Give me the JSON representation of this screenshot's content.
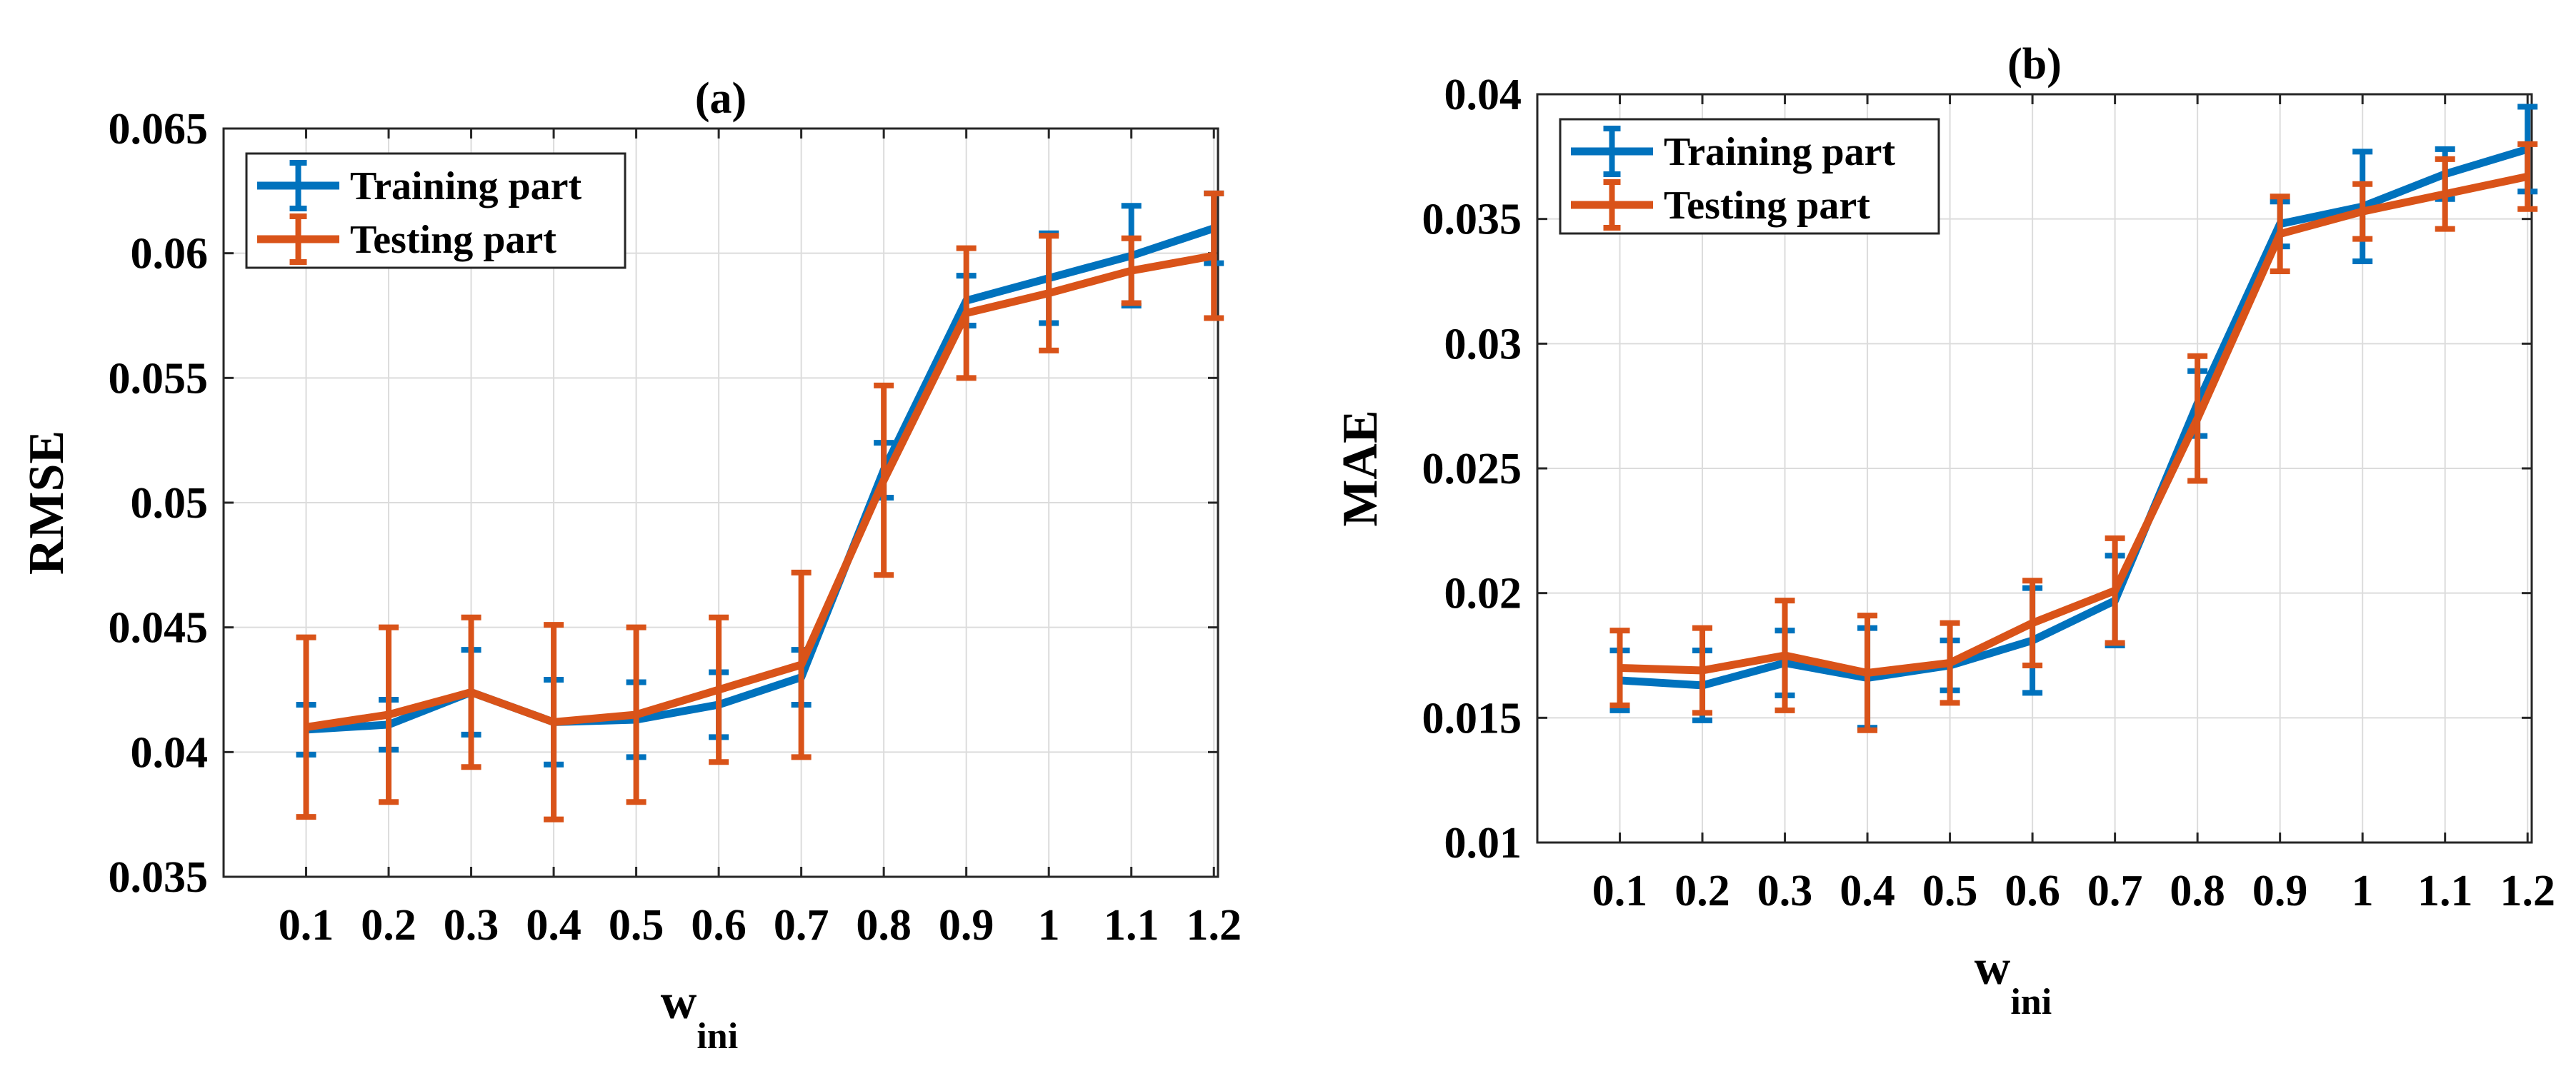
{
  "chart_data": [
    {
      "type": "line",
      "title": "(a)",
      "xlabel": "w",
      "xlabel_subscript": "ini",
      "ylabel": "RMSE",
      "x": [
        0.1,
        0.2,
        0.3,
        0.4,
        0.5,
        0.6,
        0.7,
        0.8,
        0.9,
        1,
        1.1,
        1.2
      ],
      "xticklabels": [
        "0.1",
        "0.2",
        "0.3",
        "0.4",
        "0.5",
        "0.6",
        "0.7",
        "0.8",
        "0.9",
        "1",
        "1.1",
        "1.2"
      ],
      "xlim": [
        0.0,
        1.205
      ],
      "ylim": [
        0.035,
        0.065
      ],
      "yticks": [
        0.035,
        0.04,
        0.045,
        0.05,
        0.055,
        0.06,
        0.065
      ],
      "yticklabels": [
        "0.035",
        "0.04",
        "0.045",
        "0.05",
        "0.055",
        "0.06",
        "0.065"
      ],
      "grid": true,
      "legend_position": "top-left",
      "series": [
        {
          "name": "Training part",
          "color": "#0072BD",
          "values": [
            0.0409,
            0.0411,
            0.0424,
            0.0412,
            0.0413,
            0.0419,
            0.043,
            0.0513,
            0.0581,
            0.059,
            0.0599,
            0.061
          ],
          "errors": [
            0.001,
            0.001,
            0.0017,
            0.0017,
            0.0015,
            0.0013,
            0.0011,
            0.0011,
            0.001,
            0.0018,
            0.002,
            0.0014
          ]
        },
        {
          "name": "Testing part",
          "color": "#D95319",
          "values": [
            0.041,
            0.0415,
            0.0424,
            0.0412,
            0.0415,
            0.0425,
            0.0435,
            0.0509,
            0.0576,
            0.0584,
            0.0593,
            0.0599
          ],
          "errors": [
            0.0036,
            0.0035,
            0.003,
            0.0039,
            0.0035,
            0.0029,
            0.0037,
            0.0038,
            0.0026,
            0.0023,
            0.0013,
            0.0025
          ]
        }
      ]
    },
    {
      "type": "line",
      "title": "(b)",
      "xlabel": "w",
      "xlabel_subscript": "ini",
      "ylabel": "MAE",
      "x": [
        0.1,
        0.2,
        0.3,
        0.4,
        0.5,
        0.6,
        0.7,
        0.8,
        0.9,
        1,
        1.1,
        1.2
      ],
      "xticklabels": [
        "0.1",
        "0.2",
        "0.3",
        "0.4",
        "0.5",
        "0.6",
        "0.7",
        "0.8",
        "0.9",
        "1",
        "1.1",
        "1.2"
      ],
      "xlim": [
        0.0,
        1.205
      ],
      "ylim": [
        0.01,
        0.04
      ],
      "yticks": [
        0.01,
        0.015,
        0.02,
        0.025,
        0.03,
        0.035,
        0.04
      ],
      "yticklabels": [
        "0.01",
        "0.015",
        "0.02",
        "0.025",
        "0.03",
        "0.035",
        "0.04"
      ],
      "grid": true,
      "legend_position": "top-left",
      "series": [
        {
          "name": "Training part",
          "color": "#0072BD",
          "values": [
            0.0165,
            0.0163,
            0.0172,
            0.0166,
            0.0171,
            0.0181,
            0.0197,
            0.0276,
            0.0348,
            0.0355,
            0.0368,
            0.0378
          ],
          "errors": [
            0.0012,
            0.0014,
            0.0013,
            0.002,
            0.001,
            0.0021,
            0.0018,
            0.0013,
            0.0009,
            0.0022,
            0.001,
            0.0017
          ]
        },
        {
          "name": "Testing part",
          "color": "#D95319",
          "values": [
            0.017,
            0.0169,
            0.0175,
            0.0168,
            0.0172,
            0.0188,
            0.0201,
            0.027,
            0.0344,
            0.0353,
            0.036,
            0.0367
          ],
          "errors": [
            0.0015,
            0.0017,
            0.0022,
            0.0023,
            0.0016,
            0.0017,
            0.0021,
            0.0025,
            0.0015,
            0.0011,
            0.0014,
            0.0013
          ]
        }
      ]
    }
  ]
}
